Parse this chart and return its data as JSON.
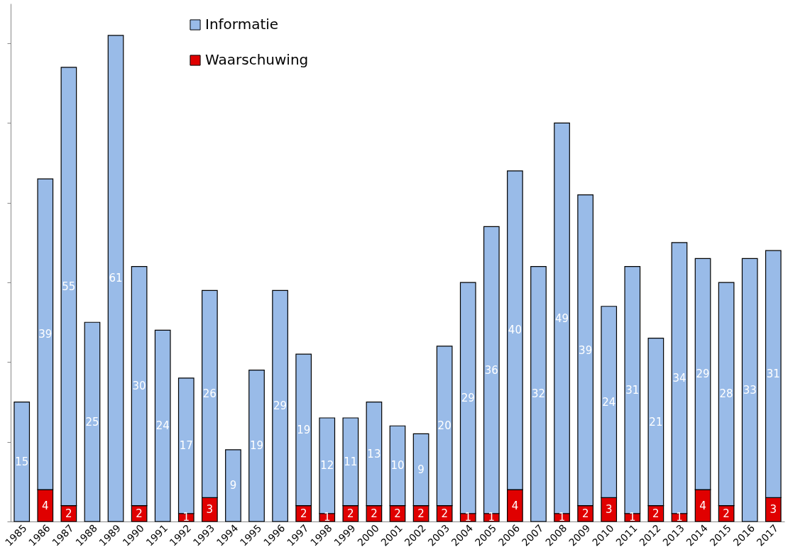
{
  "chart_data": {
    "type": "bar",
    "stacked": true,
    "categories": [
      "1985",
      "1986",
      "1987",
      "1988",
      "1989",
      "1990",
      "1991",
      "1992",
      "1993",
      "1994",
      "1995",
      "1996",
      "1997",
      "1998",
      "1999",
      "2000",
      "2001",
      "2002",
      "2003",
      "2004",
      "2005",
      "2006",
      "2007",
      "2008",
      "2009",
      "2010",
      "2011",
      "2012",
      "2013",
      "2014",
      "2015",
      "2016",
      "2017"
    ],
    "series": [
      {
        "name": "Waarschuwing",
        "color": "#e00000",
        "values": [
          null,
          4,
          2,
          null,
          null,
          2,
          null,
          1,
          3,
          null,
          null,
          null,
          2,
          1,
          2,
          2,
          2,
          2,
          2,
          1,
          1,
          4,
          null,
          1,
          2,
          3,
          1,
          2,
          1,
          4,
          2,
          null,
          3
        ]
      },
      {
        "name": "Informatie",
        "color": "#99bbe8",
        "values": [
          15,
          39,
          55,
          25,
          61,
          30,
          24,
          17,
          26,
          9,
          19,
          29,
          19,
          12,
          11,
          13,
          10,
          9,
          20,
          29,
          36,
          40,
          32,
          49,
          39,
          24,
          31,
          21,
          34,
          29,
          28,
          33,
          31
        ]
      }
    ],
    "ylim": [
      0,
      65
    ],
    "yticks": [
      {
        "value": 0,
        "label": null
      },
      {
        "value": 10,
        "label": null
      },
      {
        "value": 20,
        "label": null
      },
      {
        "value": 30,
        "label": null
      },
      {
        "value": 40,
        "label": null
      },
      {
        "value": 50,
        "label": null
      },
      {
        "value": 60,
        "label": null
      }
    ],
    "tick_labels": "x",
    "data_labels": true,
    "legend": "top left",
    "grid": false
  }
}
